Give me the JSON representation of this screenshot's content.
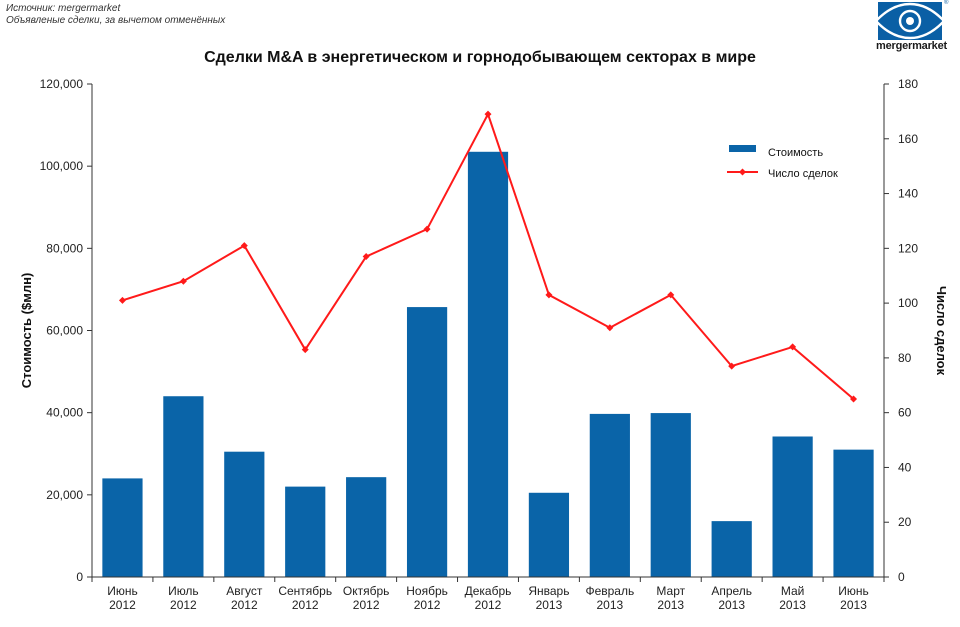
{
  "source": {
    "line1": "Источник: mergermarket",
    "line2": "Объявленые сделки, за вычетом  отменённых"
  },
  "logo": {
    "text": "mergermarket",
    "tm": "®"
  },
  "colors": {
    "bar": "#0a64a8",
    "line": "#ff1a1a",
    "axis": "#333333"
  },
  "chart_data": {
    "type": "bar",
    "title": "Сделки M&A в энергетическом и горнодобывающем секторах в мире",
    "categories": [
      [
        "Июнь",
        "2012"
      ],
      [
        "Июль",
        "2012"
      ],
      [
        "Август",
        "2012"
      ],
      [
        "Сентябрь",
        "2012"
      ],
      [
        "Октябрь",
        "2012"
      ],
      [
        "Ноябрь",
        "2012"
      ],
      [
        "Декабрь",
        "2012"
      ],
      [
        "Январь",
        "2013"
      ],
      [
        "Февраль",
        "2013"
      ],
      [
        "Март",
        "2013"
      ],
      [
        "Апрель",
        "2013"
      ],
      [
        "Май",
        "2013"
      ],
      [
        "Июнь",
        "2013"
      ]
    ],
    "series": [
      {
        "name": "Стоимость",
        "type": "bar",
        "axis": "left",
        "values": [
          24000,
          44000,
          30500,
          22000,
          24300,
          65700,
          103500,
          20500,
          39700,
          39900,
          13600,
          34200,
          31000
        ]
      },
      {
        "name": "Число сделок",
        "type": "line",
        "axis": "right",
        "values": [
          101,
          108,
          121,
          83,
          117,
          127,
          169,
          103,
          91,
          103,
          77,
          84,
          65
        ]
      }
    ],
    "y_left": {
      "label": "Стоимость ($млн)",
      "ylim": [
        0,
        120000
      ],
      "ticks": [
        "0",
        "20,000",
        "40,000",
        "60,000",
        "80,000",
        "100,000",
        "120,000"
      ]
    },
    "y_right": {
      "label": "Число сделок",
      "ylim": [
        0,
        180
      ],
      "ticks": [
        "0",
        "20",
        "40",
        "60",
        "80",
        "100",
        "120",
        "140",
        "160",
        "180"
      ]
    },
    "grid": false,
    "legend_position": "top-right"
  }
}
